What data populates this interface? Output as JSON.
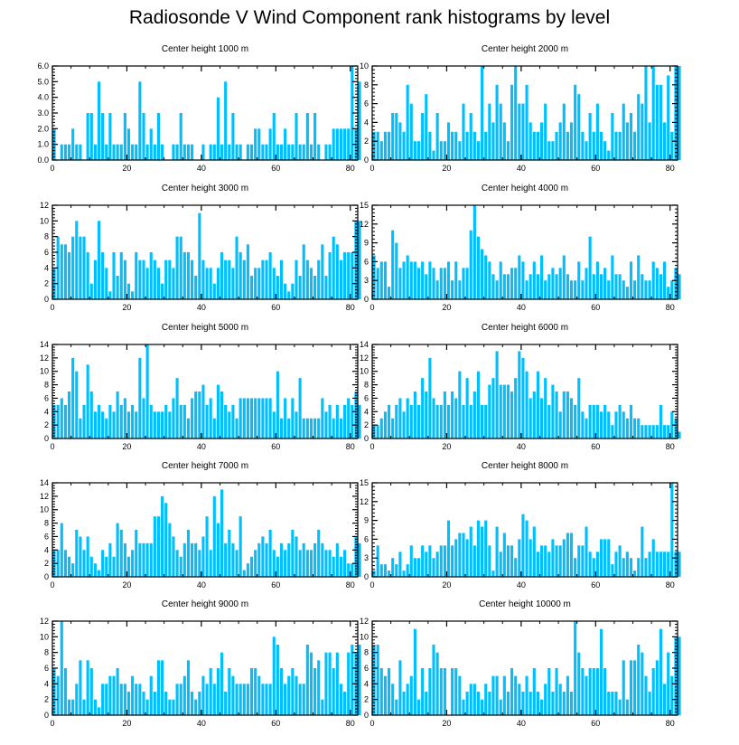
{
  "title": "Radiosonde V Wind Component rank histograms by level",
  "colors": {
    "bar": "#00BFFF",
    "axis": "#000000",
    "background": "#FFFFFF"
  },
  "chart_data": [
    {
      "type": "bar",
      "title": "Center height 1000 m",
      "xlim": [
        0,
        82
      ],
      "ylim": [
        0,
        6
      ],
      "x_ticks": [
        0,
        20,
        40,
        60,
        80
      ],
      "y_ticks": [
        0.0,
        1.0,
        2.0,
        3.0,
        4.0,
        5.0,
        6.0
      ],
      "y_tick_labels": [
        "0.0",
        "1.0",
        "2.0",
        "3.0",
        "4.0",
        "5.0",
        "6.0"
      ],
      "values": [
        2,
        0,
        1,
        1,
        1,
        2,
        1,
        1,
        0,
        3,
        3,
        1,
        5,
        3,
        1,
        3,
        1,
        1,
        1,
        3,
        2,
        1,
        1,
        5,
        3,
        1,
        2,
        1,
        3,
        1,
        0,
        0,
        1,
        1,
        3,
        1,
        1,
        1,
        0,
        0,
        1,
        0,
        1,
        1,
        4,
        1,
        5,
        1,
        3,
        1,
        1,
        0,
        1,
        1,
        2,
        2,
        1,
        1,
        2,
        3,
        1,
        1,
        2,
        1,
        1,
        3,
        1,
        1,
        3,
        1,
        3,
        1,
        0,
        1,
        1,
        2,
        2,
        2,
        2,
        2,
        6,
        2,
        5
      ]
    },
    {
      "type": "bar",
      "title": "Center height 2000 m",
      "xlim": [
        0,
        82
      ],
      "ylim": [
        0,
        10
      ],
      "x_ticks": [
        0,
        20,
        40,
        60,
        80
      ],
      "y_ticks": [
        0,
        2,
        4,
        6,
        8,
        10
      ],
      "y_tick_labels": [
        "0",
        "2",
        "4",
        "6",
        "8",
        "10"
      ],
      "values": [
        3,
        3,
        2,
        3,
        3,
        5,
        5,
        4,
        3,
        8,
        6,
        2,
        2,
        5,
        7,
        3,
        1,
        5,
        2,
        2,
        4,
        3,
        3,
        2,
        6,
        3,
        5,
        3,
        2,
        10,
        3,
        6,
        4,
        8,
        6,
        4,
        2,
        8,
        10,
        6,
        6,
        8,
        4,
        3,
        3,
        4,
        6,
        2,
        2,
        3,
        4,
        6,
        3,
        4,
        8,
        7,
        3,
        2,
        5,
        3,
        6,
        3,
        2,
        1,
        5,
        3,
        3,
        6,
        4,
        5,
        3,
        7,
        6,
        10,
        4,
        10,
        8,
        8,
        4,
        9,
        3,
        10,
        10
      ]
    },
    {
      "type": "bar",
      "title": "Center height 3000 m",
      "xlim": [
        0,
        82
      ],
      "ylim": [
        0,
        12
      ],
      "x_ticks": [
        0,
        20,
        40,
        60,
        80
      ],
      "y_ticks": [
        0,
        2,
        4,
        6,
        8,
        10,
        12
      ],
      "y_tick_labels": [
        "0",
        "2",
        "4",
        "6",
        "8",
        "10",
        "12"
      ],
      "values": [
        4,
        8,
        7,
        7,
        6,
        8,
        10,
        8,
        8,
        6,
        2,
        5,
        10,
        6,
        4,
        1,
        6,
        3,
        6,
        5,
        2,
        1,
        6,
        5,
        5,
        4,
        6,
        5,
        4,
        2,
        5,
        5,
        4,
        8,
        8,
        6,
        6,
        5,
        3,
        11,
        5,
        4,
        4,
        2,
        4,
        6,
        5,
        5,
        4,
        8,
        6,
        5,
        7,
        3,
        4,
        4,
        5,
        5,
        6,
        4,
        3,
        5,
        2,
        1,
        2,
        5,
        3,
        7,
        5,
        4,
        3,
        5,
        7,
        3,
        6,
        8,
        7,
        5,
        6,
        6,
        6,
        10,
        10
      ]
    },
    {
      "type": "bar",
      "title": "Center height 4000 m",
      "xlim": [
        0,
        82
      ],
      "ylim": [
        0,
        15
      ],
      "x_ticks": [
        0,
        20,
        40,
        60,
        80
      ],
      "y_ticks": [
        0,
        3,
        6,
        9,
        12,
        15
      ],
      "y_tick_labels": [
        "0",
        "3",
        "6",
        "9",
        "12",
        "15"
      ],
      "values": [
        7,
        5,
        6,
        6,
        2,
        11,
        9,
        5,
        6,
        7,
        6,
        6,
        5,
        6,
        4,
        6,
        5,
        3,
        5,
        5,
        6,
        3,
        6,
        3,
        5,
        5,
        11,
        15,
        10,
        8,
        7,
        6,
        4,
        3,
        6,
        4,
        4,
        5,
        5,
        7,
        6,
        3,
        4,
        6,
        4,
        7,
        3,
        4,
        5,
        4,
        5,
        7,
        4,
        3,
        3,
        6,
        3,
        5,
        10,
        4,
        6,
        4,
        5,
        3,
        7,
        4,
        4,
        3,
        2,
        6,
        3,
        7,
        4,
        3,
        3,
        6,
        5,
        4,
        6,
        2,
        3,
        5,
        4
      ]
    },
    {
      "type": "bar",
      "title": "Center height 5000 m",
      "xlim": [
        0,
        82
      ],
      "ylim": [
        0,
        14
      ],
      "x_ticks": [
        0,
        20,
        40,
        60,
        80
      ],
      "y_ticks": [
        0,
        2,
        4,
        6,
        8,
        10,
        12,
        14
      ],
      "y_tick_labels": [
        "0",
        "2",
        "4",
        "6",
        "8",
        "10",
        "12",
        "14"
      ],
      "values": [
        5,
        5,
        6,
        5,
        7,
        12,
        10,
        3,
        5,
        11,
        7,
        4,
        5,
        4,
        3,
        5,
        4,
        7,
        5,
        6,
        4,
        5,
        4,
        12,
        6,
        14,
        5,
        4,
        4,
        4,
        5,
        4,
        6,
        9,
        5,
        5,
        3,
        6,
        7,
        7,
        8,
        5,
        6,
        3,
        8,
        7,
        5,
        4,
        5,
        3,
        6,
        6,
        6,
        6,
        6,
        6,
        6,
        6,
        6,
        4,
        10,
        3,
        6,
        3,
        6,
        4,
        9,
        3,
        3,
        3,
        3,
        3,
        6,
        4,
        5,
        3,
        5,
        3,
        5,
        6,
        5,
        7,
        5
      ]
    },
    {
      "type": "bar",
      "title": "Center height 6000 m",
      "xlim": [
        0,
        82
      ],
      "ylim": [
        0,
        14
      ],
      "x_ticks": [
        0,
        20,
        40,
        60,
        80
      ],
      "y_ticks": [
        0,
        2,
        4,
        6,
        8,
        10,
        12,
        14
      ],
      "y_tick_labels": [
        "0",
        "2",
        "4",
        "6",
        "8",
        "10",
        "12",
        "14"
      ],
      "values": [
        2,
        2,
        3,
        4,
        5,
        3,
        5,
        6,
        4,
        6,
        5,
        7,
        5,
        9,
        7,
        12,
        6,
        5,
        5,
        7,
        5,
        7,
        6,
        10,
        5,
        9,
        5,
        7,
        10,
        5,
        5,
        8,
        9,
        13,
        8,
        8,
        8,
        7,
        9,
        13,
        12,
        10,
        6,
        7,
        10,
        6,
        9,
        5,
        8,
        7,
        4,
        7,
        7,
        6,
        5,
        9,
        4,
        3,
        5,
        5,
        5,
        4,
        5,
        4,
        2,
        4,
        5,
        4,
        3,
        5,
        3,
        3,
        2,
        2,
        2,
        2,
        2,
        5,
        2,
        2,
        4,
        3,
        1
      ]
    },
    {
      "type": "bar",
      "title": "Center height 7000 m",
      "xlim": [
        0,
        82
      ],
      "ylim": [
        0,
        14
      ],
      "x_ticks": [
        0,
        20,
        40,
        60,
        80
      ],
      "y_ticks": [
        0,
        2,
        4,
        6,
        8,
        10,
        12,
        14
      ],
      "y_tick_labels": [
        "0",
        "2",
        "4",
        "6",
        "8",
        "10",
        "12",
        "14"
      ],
      "values": [
        4,
        4,
        8,
        4,
        3,
        2,
        7,
        6,
        4,
        6,
        3,
        2,
        1,
        4,
        3,
        5,
        3,
        8,
        7,
        5,
        3,
        4,
        7,
        5,
        5,
        5,
        5,
        9,
        9,
        12,
        11,
        8,
        6,
        4,
        3,
        5,
        7,
        5,
        5,
        4,
        6,
        9,
        4,
        12,
        8,
        13,
        5,
        7,
        5,
        4,
        9,
        1,
        2,
        3,
        4,
        5,
        6,
        5,
        7,
        4,
        3,
        5,
        4,
        5,
        7,
        6,
        4,
        5,
        4,
        4,
        5,
        7,
        5,
        4,
        4,
        3,
        5,
        3,
        4,
        2,
        2,
        6,
        5
      ]
    },
    {
      "type": "bar",
      "title": "Center height 8000 m",
      "xlim": [
        0,
        82
      ],
      "ylim": [
        0,
        15
      ],
      "x_ticks": [
        0,
        20,
        40,
        60,
        80
      ],
      "y_ticks": [
        0,
        3,
        6,
        9,
        12,
        15
      ],
      "y_tick_labels": [
        "0",
        "3",
        "6",
        "9",
        "12",
        "15"
      ],
      "values": [
        1,
        5,
        2,
        2,
        1,
        3,
        2,
        4,
        1,
        2,
        5,
        3,
        3,
        5,
        4,
        5,
        3,
        4,
        5,
        5,
        9,
        5,
        6,
        7,
        7,
        6,
        8,
        5,
        9,
        8,
        9,
        5,
        1,
        8,
        4,
        7,
        5,
        5,
        3,
        6,
        10,
        9,
        6,
        8,
        4,
        5,
        5,
        4,
        6,
        5,
        5,
        6,
        7,
        7,
        3,
        5,
        5,
        8,
        4,
        3,
        4,
        6,
        6,
        6,
        2,
        4,
        5,
        3,
        4,
        3,
        1,
        3,
        8,
        3,
        4,
        6,
        4,
        4,
        4,
        4,
        15,
        4,
        4
      ]
    },
    {
      "type": "bar",
      "title": "Center height 9000 m",
      "xlim": [
        0,
        82
      ],
      "ylim": [
        0,
        12
      ],
      "x_ticks": [
        0,
        20,
        40,
        60,
        80
      ],
      "y_ticks": [
        0,
        2,
        4,
        6,
        8,
        10,
        12
      ],
      "y_tick_labels": [
        "0",
        "2",
        "4",
        "6",
        "8",
        "10",
        "12"
      ],
      "values": [
        6,
        5,
        12,
        6,
        2,
        2,
        4,
        7,
        2,
        7,
        6,
        2,
        1,
        4,
        4,
        5,
        5,
        6,
        4,
        4,
        3,
        5,
        4,
        4,
        3,
        2,
        5,
        3,
        7,
        7,
        3,
        2,
        2,
        4,
        4,
        5,
        7,
        3,
        2,
        3,
        5,
        4,
        6,
        4,
        6,
        8,
        3,
        6,
        5,
        4,
        4,
        4,
        4,
        6,
        6,
        5,
        4,
        4,
        4,
        10,
        9,
        6,
        4,
        5,
        6,
        5,
        4,
        4,
        9,
        8,
        6,
        7,
        2,
        8,
        8,
        6,
        8,
        4,
        3,
        8,
        9,
        8,
        9
      ]
    },
    {
      "type": "bar",
      "title": "Center height 10000 m",
      "xlim": [
        0,
        82
      ],
      "ylim": [
        0,
        12
      ],
      "x_ticks": [
        0,
        20,
        40,
        60,
        80
      ],
      "y_ticks": [
        0,
        2,
        4,
        6,
        8,
        10,
        12
      ],
      "y_tick_labels": [
        "0",
        "2",
        "4",
        "6",
        "8",
        "10",
        "12"
      ],
      "values": [
        9,
        9,
        6,
        5,
        6,
        4,
        2,
        7,
        3,
        4,
        5,
        11,
        2,
        6,
        3,
        6,
        9,
        8,
        6,
        6,
        0,
        6,
        6,
        5,
        2,
        3,
        4,
        4,
        3,
        2,
        4,
        3,
        5,
        5,
        2,
        5,
        3,
        6,
        5,
        4,
        3,
        5,
        3,
        6,
        3,
        2,
        4,
        6,
        3,
        6,
        4,
        3,
        5,
        3,
        12,
        8,
        6,
        5,
        6,
        6,
        6,
        11,
        6,
        3,
        3,
        3,
        2,
        7,
        2,
        7,
        7,
        9,
        8,
        5,
        3,
        6,
        7,
        11,
        4,
        8,
        5,
        10,
        10
      ]
    }
  ]
}
